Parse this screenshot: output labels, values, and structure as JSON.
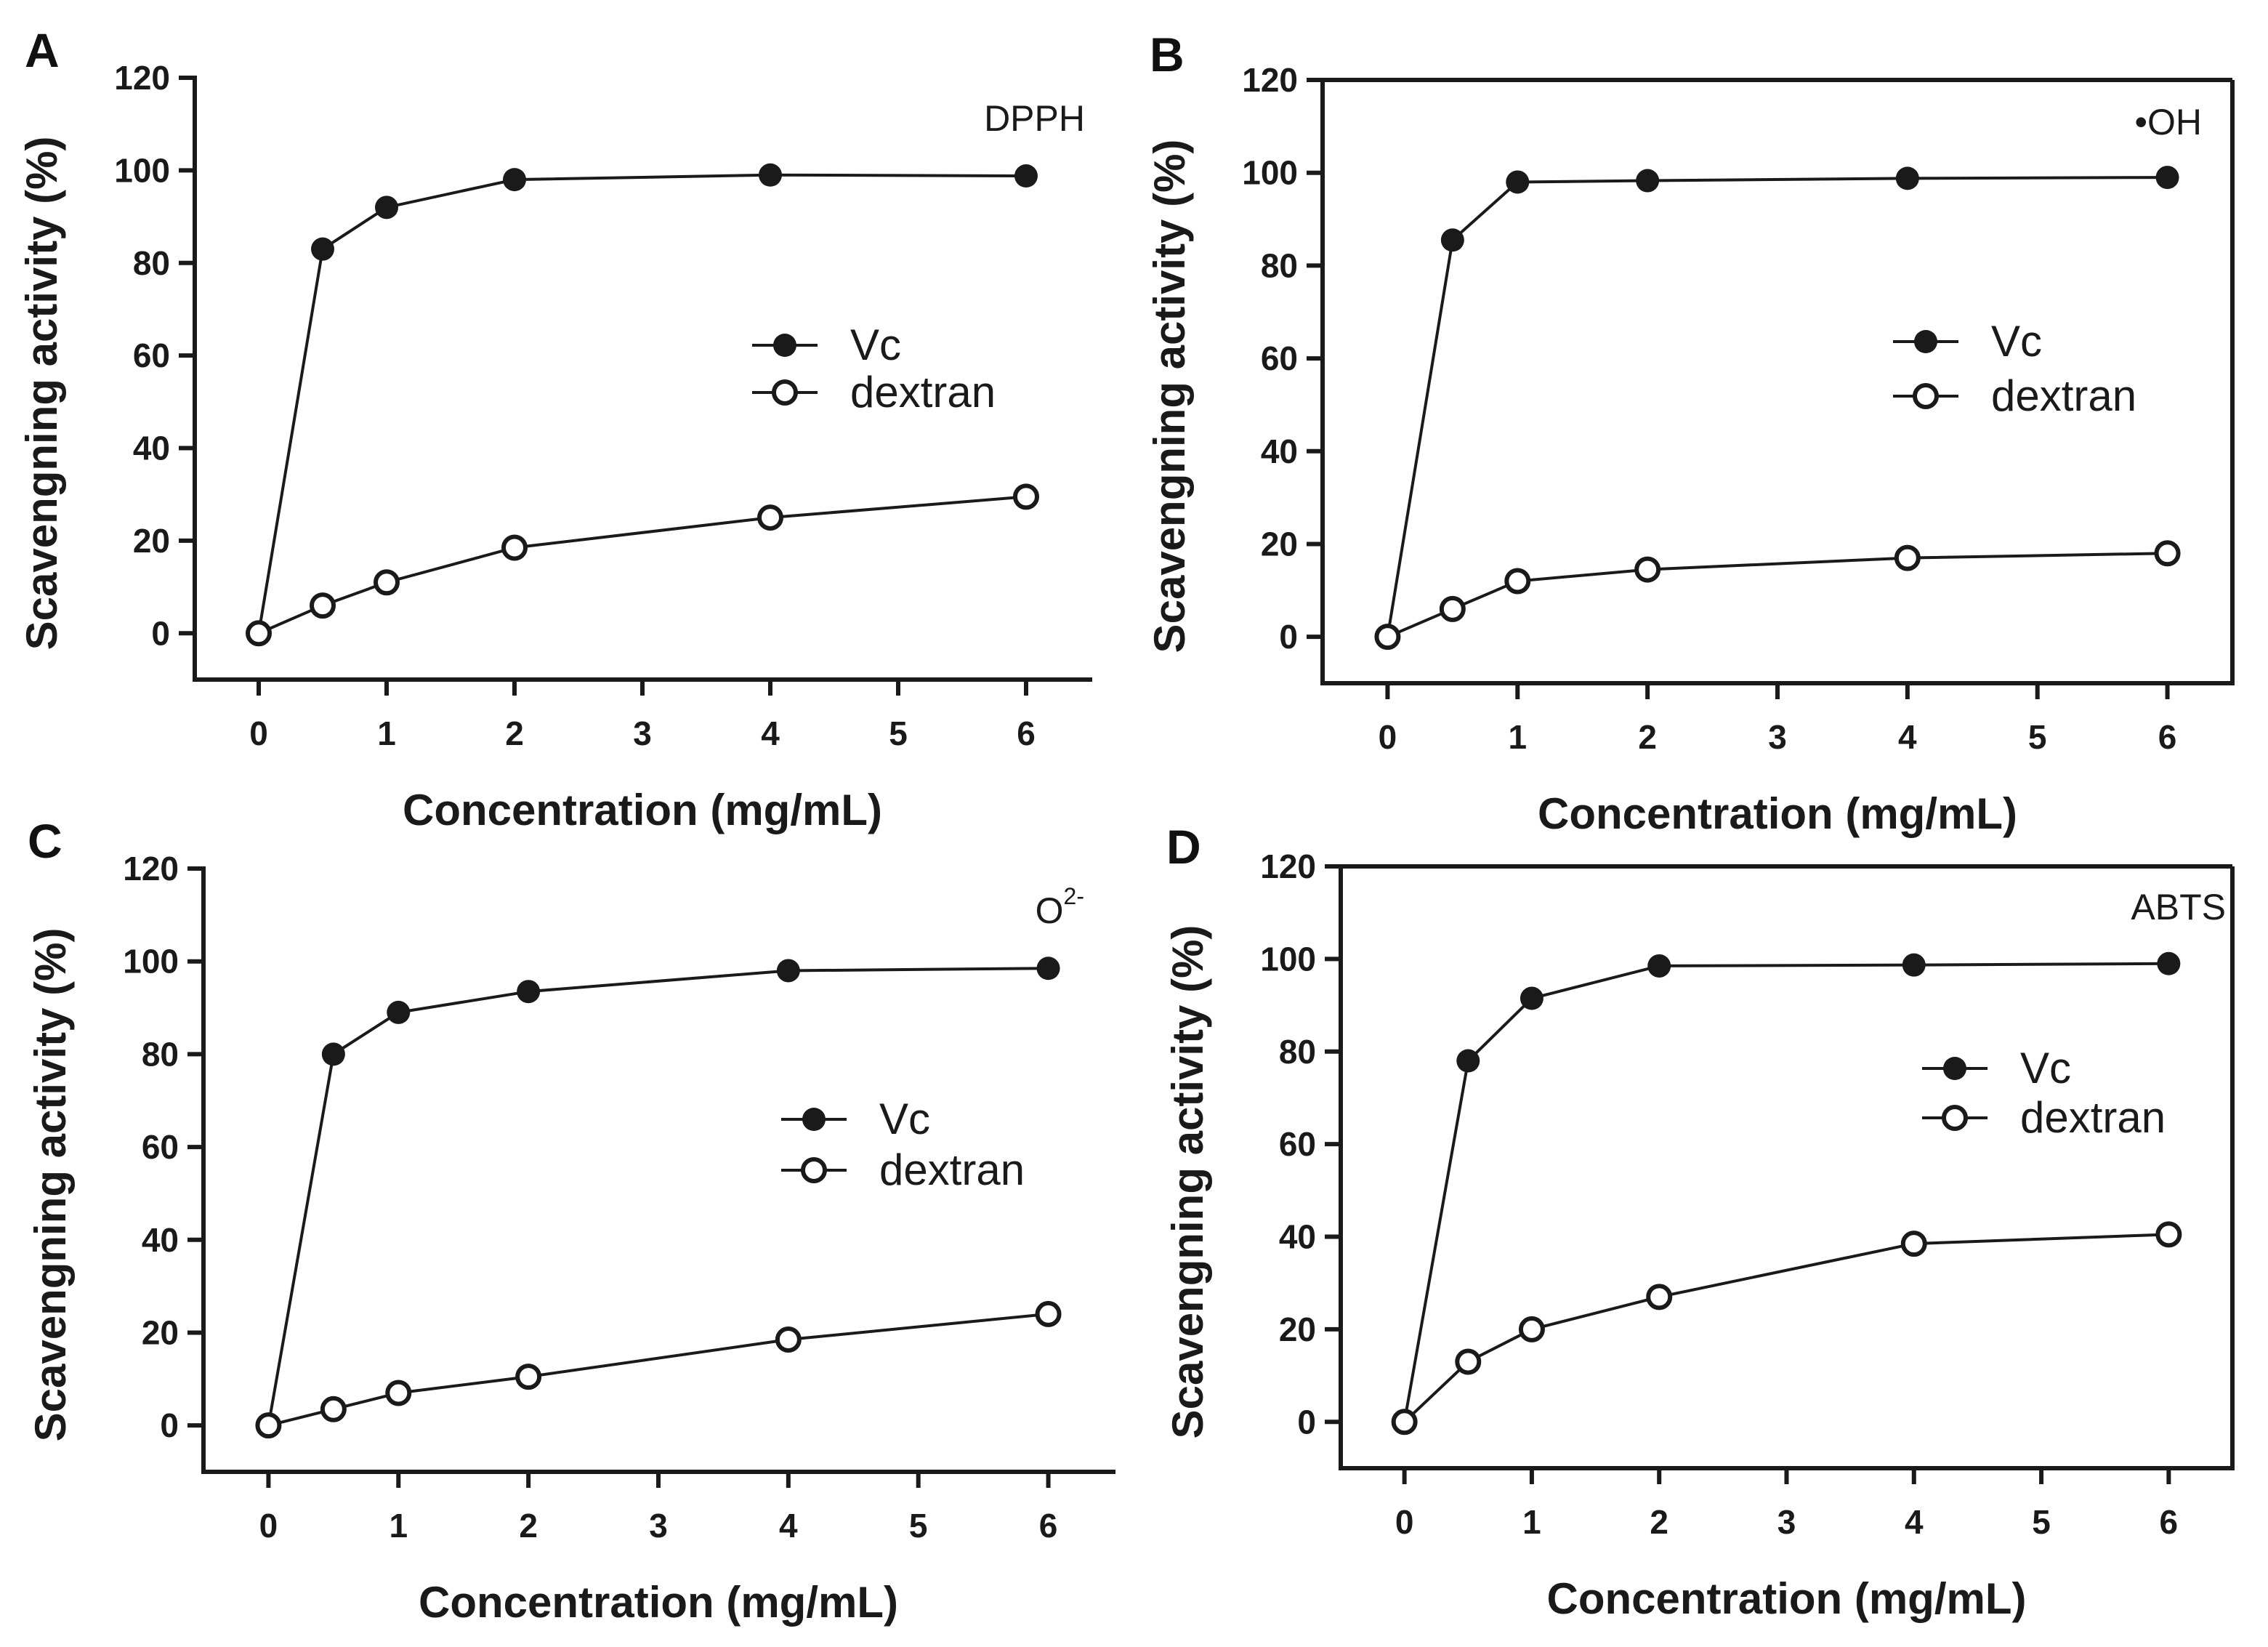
{
  "chart_data": [
    {
      "type": "line",
      "panel_label": "A",
      "annotation": "DPPH",
      "annotation_sup": "",
      "xlabel": "Concentration (mg/mL)",
      "ylabel": "Scavengning activity (%)",
      "xlim": [
        -0.5,
        6.5
      ],
      "ylim": [
        -10,
        120
      ],
      "xticks": [
        0,
        1,
        2,
        3,
        4,
        5,
        6
      ],
      "yticks": [
        0,
        20,
        40,
        60,
        80,
        100,
        120
      ],
      "x": [
        0,
        0.5,
        1,
        2,
        4,
        6
      ],
      "series": [
        {
          "name": "Vc",
          "marker": "filled-circle",
          "values": [
            0,
            83,
            92,
            98,
            99,
            98.8
          ]
        },
        {
          "name": "dextran",
          "marker": "open-circle",
          "values": [
            0,
            6,
            11,
            18.5,
            25,
            29.5
          ]
        }
      ],
      "legend_position": "center-right"
    },
    {
      "type": "line",
      "panel_label": "B",
      "annotation": "•OH",
      "annotation_sup": "",
      "xlabel": "Concentration (mg/mL)",
      "ylabel": "Scavengning activity (%)",
      "xlim": [
        -0.5,
        6.5
      ],
      "ylim": [
        -10,
        120
      ],
      "xticks": [
        0,
        1,
        2,
        3,
        4,
        5,
        6
      ],
      "yticks": [
        0,
        20,
        40,
        60,
        80,
        100,
        120
      ],
      "x": [
        0,
        0.5,
        1,
        2,
        4,
        6
      ],
      "series": [
        {
          "name": "Vc",
          "marker": "filled-circle",
          "values": [
            0,
            85.5,
            98,
            98.3,
            98.8,
            99
          ]
        },
        {
          "name": "dextran",
          "marker": "open-circle",
          "values": [
            0,
            6,
            12,
            14.5,
            17,
            18
          ]
        }
      ],
      "legend_position": "center-right"
    },
    {
      "type": "line",
      "panel_label": "C",
      "annotation": "O",
      "annotation_sup": "2-",
      "xlabel": "Concentration (mg/mL)",
      "ylabel": "Scavengning activity (%)",
      "xlim": [
        -0.5,
        6.5
      ],
      "ylim": [
        -10,
        120
      ],
      "xticks": [
        0,
        1,
        2,
        3,
        4,
        5,
        6
      ],
      "yticks": [
        0,
        20,
        40,
        60,
        80,
        100,
        120
      ],
      "x": [
        0,
        0.5,
        1,
        2,
        4,
        6
      ],
      "series": [
        {
          "name": "Vc",
          "marker": "filled-circle",
          "values": [
            0,
            80,
            89,
            93.5,
            98,
            98.5
          ]
        },
        {
          "name": "dextran",
          "marker": "open-circle",
          "values": [
            0,
            3.5,
            7,
            10.5,
            18.5,
            24
          ]
        }
      ],
      "legend_position": "center-right"
    },
    {
      "type": "line",
      "panel_label": "D",
      "annotation": "ABTS",
      "annotation_sup": "",
      "xlabel": "Concentration (mg/mL)",
      "ylabel": "Scavengning activity (%)",
      "xlim": [
        -0.5,
        6.5
      ],
      "ylim": [
        -10,
        120
      ],
      "xticks": [
        0,
        1,
        2,
        3,
        4,
        5,
        6
      ],
      "yticks": [
        0,
        20,
        40,
        60,
        80,
        100,
        120
      ],
      "x": [
        0,
        0.5,
        1,
        2,
        4,
        6
      ],
      "series": [
        {
          "name": "Vc",
          "marker": "filled-circle",
          "values": [
            0,
            78,
            91.5,
            98.5,
            98.7,
            99
          ]
        },
        {
          "name": "dextran",
          "marker": "open-circle",
          "values": [
            0,
            13,
            20,
            27,
            38.5,
            40.5
          ]
        }
      ],
      "legend_position": "center-right"
    }
  ],
  "colors": {
    "ink": "#1a1a1a",
    "background": "#ffffff"
  }
}
